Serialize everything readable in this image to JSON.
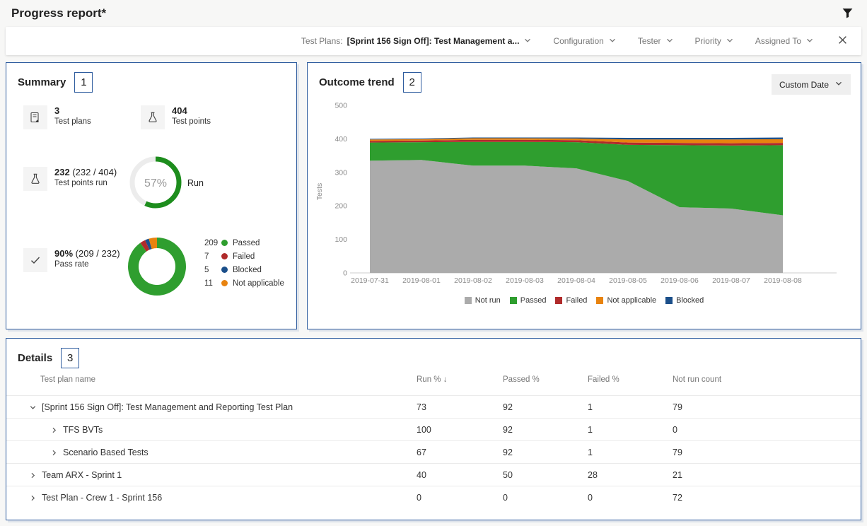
{
  "header": {
    "title": "Progress report*"
  },
  "filter_bar": {
    "test_plans_label": "Test Plans:",
    "test_plans_value": "[Sprint 156 Sign Off]: Test Management a...",
    "dropdowns": [
      "Configuration",
      "Tester",
      "Priority",
      "Assigned To"
    ]
  },
  "summary": {
    "title": "Summary",
    "badge": "1",
    "stats": [
      {
        "value": "3",
        "detail": "",
        "label": "Test plans",
        "icon": "test-plan-icon"
      },
      {
        "value": "404",
        "detail": "",
        "label": "Test points",
        "icon": "beaker-icon"
      },
      {
        "value": "232",
        "detail": "(232 / 404)",
        "label": "Test points run",
        "icon": "beaker-icon"
      },
      {
        "value": "90%",
        "detail": "(209 / 232)",
        "label": "Pass rate",
        "icon": "checkmark-icon"
      }
    ],
    "run_ring": {
      "percent": 57,
      "percent_label": "57%",
      "label": "Run",
      "color": "#1d8d1d",
      "track_color": "#ececec"
    },
    "outcome_donut": {
      "segments": [
        {
          "label": "Passed",
          "value": 209,
          "color": "#2f9e2f"
        },
        {
          "label": "Failed",
          "value": 7,
          "color": "#b02b2b"
        },
        {
          "label": "Blocked",
          "value": 5,
          "color": "#1b4f8a"
        },
        {
          "label": "Not applicable",
          "value": 11,
          "color": "#e8830f"
        }
      ]
    }
  },
  "trend": {
    "title": "Outcome trend",
    "badge": "2",
    "custom_date_label": "Custom Date"
  },
  "chart_data": {
    "type": "area",
    "stacked": true,
    "title": "Outcome trend",
    "xlabel": "",
    "ylabel": "Tests",
    "ylim": [
      0,
      500
    ],
    "yticks": [
      0,
      100,
      200,
      300,
      400,
      500
    ],
    "grid": false,
    "legend_position": "bottom",
    "x": [
      "2019-07-31",
      "2019-08-01",
      "2019-08-02",
      "2019-08-03",
      "2019-08-04",
      "2019-08-05",
      "2019-08-06",
      "2019-08-07",
      "2019-08-08"
    ],
    "series": [
      {
        "name": "Not run",
        "color": "#ababab",
        "values": [
          335,
          337,
          320,
          320,
          312,
          274,
          196,
          192,
          172
        ]
      },
      {
        "name": "Passed",
        "color": "#2f9e2f",
        "values": [
          54,
          53,
          71,
          71,
          78,
          108,
          185,
          188,
          209
        ]
      },
      {
        "name": "Failed",
        "color": "#b02b2b",
        "values": [
          5,
          5,
          6,
          6,
          6,
          7,
          7,
          7,
          7
        ]
      },
      {
        "name": "Not applicable",
        "color": "#e8830f",
        "values": [
          4,
          4,
          5,
          5,
          5,
          9,
          10,
          11,
          11
        ]
      },
      {
        "name": "Blocked",
        "color": "#1b4f8a",
        "values": [
          2,
          2,
          2,
          2,
          3,
          5,
          5,
          5,
          5
        ]
      }
    ]
  },
  "details": {
    "title": "Details",
    "badge": "3",
    "columns": [
      "Test plan name",
      "Run % ↓",
      "Passed %",
      "Failed %",
      "Not run count"
    ],
    "rows": [
      {
        "name": "[Sprint 156 Sign Off]: Test Management and Reporting Test Plan",
        "indent": 0,
        "expanded": true,
        "run": "73",
        "passed": "92",
        "failed": "1",
        "notrun": "79"
      },
      {
        "name": "TFS BVTs",
        "indent": 1,
        "expanded": false,
        "run": "100",
        "passed": "92",
        "failed": "1",
        "notrun": "0"
      },
      {
        "name": "Scenario Based Tests",
        "indent": 1,
        "expanded": false,
        "run": "67",
        "passed": "92",
        "failed": "1",
        "notrun": "79"
      },
      {
        "name": "Team ARX - Sprint 1",
        "indent": 0,
        "expanded": false,
        "run": "40",
        "passed": "50",
        "failed": "28",
        "notrun": "21"
      },
      {
        "name": "Test Plan - Crew 1 - Sprint 156",
        "indent": 0,
        "expanded": false,
        "run": "0",
        "passed": "0",
        "failed": "0",
        "notrun": "72"
      }
    ]
  }
}
